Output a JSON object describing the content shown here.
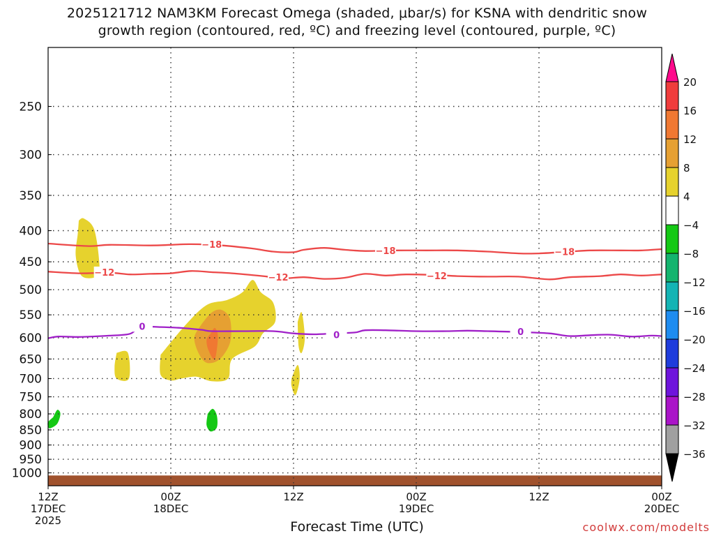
{
  "title_line1": "2025121712 NAM3KM Forecast Omega (shaded, μbar/s) for KSNA with dendritic snow",
  "title_line2": "growth region (contoured, red, ºC) and freezing level (contoured, purple, ºC)",
  "credit": "coolwx.com/modelts",
  "chart_data": {
    "type": "contour",
    "title": "2025121712 NAM3KM Forecast Omega (shaded, μbar/s) for KSNA with dendritic snow growth region (contoured, red, ºC) and freezing level (contoured, purple, ºC)",
    "xlabel": "Forecast Time (UTC)",
    "ylabel": "",
    "x_unit": "forecast hour from 2025-12-17 12Z",
    "xlim": [
      0,
      60
    ],
    "x_ticks": [
      {
        "x": 0,
        "lines": [
          "12Z",
          "17DEC",
          "2025"
        ]
      },
      {
        "x": 12,
        "lines": [
          "00Z",
          "18DEC"
        ]
      },
      {
        "x": 24,
        "lines": [
          "12Z"
        ]
      },
      {
        "x": 36,
        "lines": [
          "00Z",
          "19DEC"
        ]
      },
      {
        "x": 48,
        "lines": [
          "12Z"
        ]
      },
      {
        "x": 60,
        "lines": [
          "00Z",
          "20DEC"
        ]
      }
    ],
    "y_scale": "log",
    "y_unit": "hPa",
    "ylim": [
      1050,
      200
    ],
    "y_ticks": [
      250,
      300,
      350,
      400,
      450,
      500,
      550,
      600,
      650,
      700,
      750,
      800,
      850,
      900,
      950,
      1000
    ],
    "grid": true,
    "colorbar": {
      "unit": "μbar/s",
      "labels": [
        "20",
        "16",
        "12",
        "8",
        "4",
        "−4",
        "−8",
        "−12",
        "−16",
        "−20",
        "−24",
        "−28",
        "−32",
        "−36"
      ],
      "colors": [
        "#ff0a8c",
        "#f03c3c",
        "#f07832",
        "#e6a032",
        "#e6d22d",
        "#ffffff",
        "#14c814",
        "#14b46e",
        "#14b4b4",
        "#1e8cf0",
        "#1e3cdc",
        "#6e14dc",
        "#aa14c8",
        "#a0a0a0",
        "#000000"
      ]
    },
    "contours": [
      {
        "color": "#ec4848",
        "label": "−18",
        "label_positions": [
          [
            16.0,
            421
          ],
          [
            33.0,
            431
          ],
          [
            50.5,
            433
          ]
        ],
        "points": [
          [
            0,
            420
          ],
          [
            4,
            424
          ],
          [
            6,
            422
          ],
          [
            10,
            423
          ],
          [
            12,
            422
          ],
          [
            14,
            421
          ],
          [
            17,
            423
          ],
          [
            20,
            428
          ],
          [
            22,
            433
          ],
          [
            24,
            434
          ],
          [
            25,
            430
          ],
          [
            27,
            427
          ],
          [
            29,
            430
          ],
          [
            31,
            432
          ],
          [
            34,
            431
          ],
          [
            37,
            431
          ],
          [
            40,
            431
          ],
          [
            43,
            433
          ],
          [
            46,
            436
          ],
          [
            48,
            436
          ],
          [
            51,
            433
          ],
          [
            53,
            431
          ],
          [
            56,
            431
          ],
          [
            58,
            431
          ],
          [
            60,
            429
          ]
        ]
      },
      {
        "color": "#ec4848",
        "label": "−12",
        "label_positions": [
          [
            5.5,
            468
          ],
          [
            22.5,
            477
          ],
          [
            38.0,
            474
          ]
        ],
        "points": [
          [
            0,
            467
          ],
          [
            3,
            470
          ],
          [
            6,
            469
          ],
          [
            8,
            472
          ],
          [
            10,
            471
          ],
          [
            12,
            470
          ],
          [
            14,
            466
          ],
          [
            16,
            468
          ],
          [
            18,
            470
          ],
          [
            21,
            475
          ],
          [
            23,
            479
          ],
          [
            25,
            477
          ],
          [
            27,
            480
          ],
          [
            29,
            478
          ],
          [
            31,
            471
          ],
          [
            33,
            474
          ],
          [
            35,
            472
          ],
          [
            38,
            473
          ],
          [
            40,
            475
          ],
          [
            43,
            476
          ],
          [
            46,
            476
          ],
          [
            49,
            481
          ],
          [
            51,
            477
          ],
          [
            54,
            475
          ],
          [
            56,
            472
          ],
          [
            58,
            474
          ],
          [
            60,
            472
          ]
        ]
      },
      {
        "color": "#a020c8",
        "label": "0",
        "label_positions": [
          [
            9.2,
            574
          ],
          [
            28.2,
            593
          ],
          [
            46.2,
            586
          ]
        ],
        "points": [
          [
            0,
            601
          ],
          [
            1,
            597
          ],
          [
            3,
            598
          ],
          [
            6,
            595
          ],
          [
            8,
            591
          ],
          [
            9,
            576
          ],
          [
            11,
            576
          ],
          [
            13,
            578
          ],
          [
            15,
            582
          ],
          [
            16,
            585
          ],
          [
            19,
            585
          ],
          [
            22,
            585
          ],
          [
            24,
            590
          ],
          [
            26,
            592
          ],
          [
            28,
            590
          ],
          [
            30,
            588
          ],
          [
            31,
            583
          ],
          [
            33,
            583
          ],
          [
            36,
            585
          ],
          [
            39,
            585
          ],
          [
            41,
            584
          ],
          [
            43,
            585
          ],
          [
            46,
            587
          ],
          [
            49,
            590
          ],
          [
            51,
            596
          ],
          [
            53,
            594
          ],
          [
            55,
            593
          ],
          [
            57,
            597
          ],
          [
            59,
            595
          ],
          [
            60,
            596
          ]
        ]
      }
    ],
    "shaded_regions": [
      {
        "value_range": "4 to 8",
        "color": "#e6d22d",
        "points": [
          [
            3.0,
            385
          ],
          [
            3.5,
            382
          ],
          [
            4.5,
            398
          ],
          [
            5.0,
            450
          ],
          [
            4.8,
            475
          ],
          [
            3.3,
            475
          ],
          [
            2.7,
            440
          ],
          [
            2.9,
            405
          ],
          [
            3.0,
            385
          ]
        ]
      },
      {
        "value_range": "4 to 8",
        "color": "#e6d22d",
        "points": [
          [
            11.0,
            640
          ],
          [
            13.5,
            570
          ],
          [
            15.5,
            530
          ],
          [
            17.5,
            520
          ],
          [
            19.0,
            505
          ],
          [
            20.0,
            482
          ],
          [
            20.8,
            505
          ],
          [
            22.0,
            525
          ],
          [
            22.2,
            565
          ],
          [
            21.0,
            590
          ],
          [
            20.2,
            620
          ],
          [
            18.0,
            650
          ],
          [
            17.6,
            700
          ],
          [
            16.0,
            707
          ],
          [
            14.5,
            695
          ],
          [
            13.0,
            700
          ],
          [
            12.0,
            705
          ],
          [
            11.0,
            690
          ],
          [
            11.0,
            640
          ]
        ]
      },
      {
        "value_range": "8 to 12",
        "color": "#e6a032",
        "points": [
          [
            15.0,
            570
          ],
          [
            16.0,
            545
          ],
          [
            17.0,
            540
          ],
          [
            17.8,
            560
          ],
          [
            17.8,
            610
          ],
          [
            16.8,
            650
          ],
          [
            15.6,
            660
          ],
          [
            14.8,
            640
          ],
          [
            14.3,
            600
          ],
          [
            15.0,
            570
          ]
        ]
      },
      {
        "value_range": "12 to 16",
        "color": "#f07832",
        "points": [
          [
            15.9,
            590
          ],
          [
            16.3,
            578
          ],
          [
            16.6,
            598
          ],
          [
            16.3,
            650
          ],
          [
            15.7,
            630
          ],
          [
            15.5,
            605
          ],
          [
            15.9,
            590
          ]
        ]
      },
      {
        "value_range": "4 to 8",
        "color": "#e6d22d",
        "points": [
          [
            6.7,
            635
          ],
          [
            7.8,
            635
          ],
          [
            7.9,
            700
          ],
          [
            6.7,
            700
          ],
          [
            6.5,
            670
          ],
          [
            6.7,
            635
          ]
        ]
      },
      {
        "value_range": "4 to 8",
        "color": "#e6d22d",
        "points": [
          [
            24.4,
            565
          ],
          [
            24.8,
            545
          ],
          [
            25.1,
            600
          ],
          [
            24.8,
            635
          ],
          [
            24.5,
            620
          ],
          [
            24.4,
            565
          ]
        ]
      },
      {
        "value_range": "4 to 8",
        "color": "#e6d22d",
        "points": [
          [
            23.8,
            700
          ],
          [
            24.4,
            665
          ],
          [
            24.6,
            700
          ],
          [
            24.2,
            745
          ],
          [
            23.8,
            720
          ],
          [
            23.8,
            700
          ]
        ]
      },
      {
        "value_range": "−8 to −4",
        "color": "#14c814",
        "points": [
          [
            0.5,
            810
          ],
          [
            0.9,
            788
          ],
          [
            1.2,
            800
          ],
          [
            0.9,
            830
          ],
          [
            0.2,
            845
          ],
          [
            0.0,
            838
          ],
          [
            0.0,
            825
          ],
          [
            0.5,
            810
          ]
        ]
      },
      {
        "value_range": "−8 to −4",
        "color": "#14c814",
        "points": [
          [
            15.6,
            800
          ],
          [
            16.1,
            785
          ],
          [
            16.5,
            805
          ],
          [
            16.5,
            842
          ],
          [
            15.9,
            855
          ],
          [
            15.5,
            835
          ],
          [
            15.6,
            800
          ]
        ]
      }
    ],
    "terrain": {
      "color": "#a0522d",
      "top_hPa": 1010,
      "label": ""
    }
  }
}
